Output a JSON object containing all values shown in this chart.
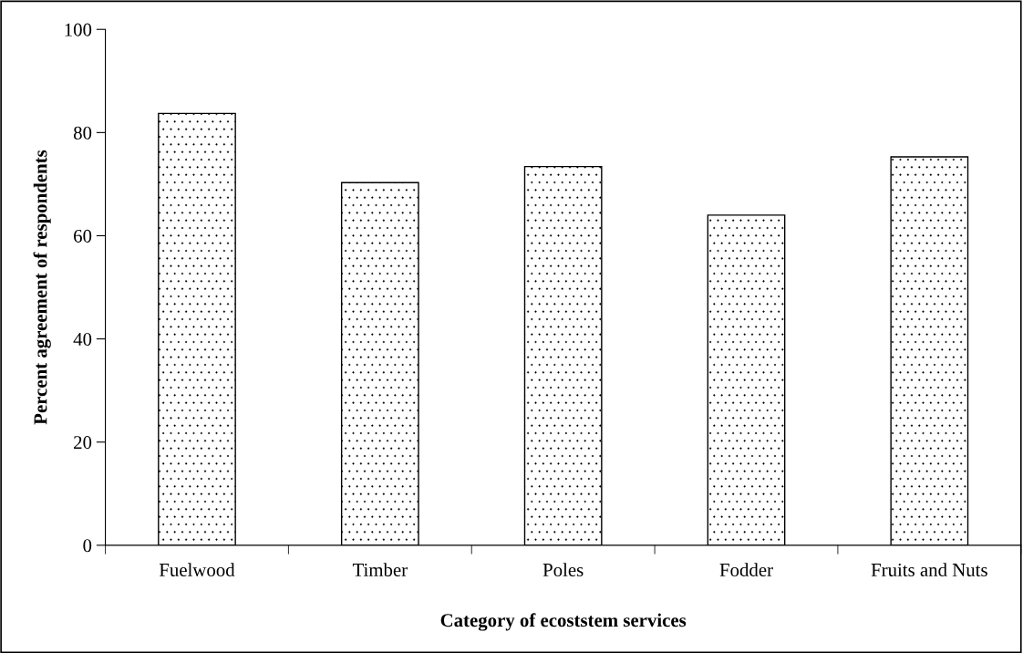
{
  "chart_data": {
    "type": "bar",
    "xlabel": "Category of ecoststem services",
    "ylabel": "Percent agreement of respondents",
    "categories": [
      "Fuelwood",
      "Timber",
      "Poles",
      "Fodder",
      "Fruits and Nuts"
    ],
    "values": [
      83.7,
      70.3,
      73.4,
      64.0,
      75.3
    ],
    "color": "#000000",
    "ylim": [
      0,
      100
    ],
    "yticks": [
      0,
      20,
      40,
      60,
      80,
      100
    ],
    "grid": false,
    "legend": false
  }
}
